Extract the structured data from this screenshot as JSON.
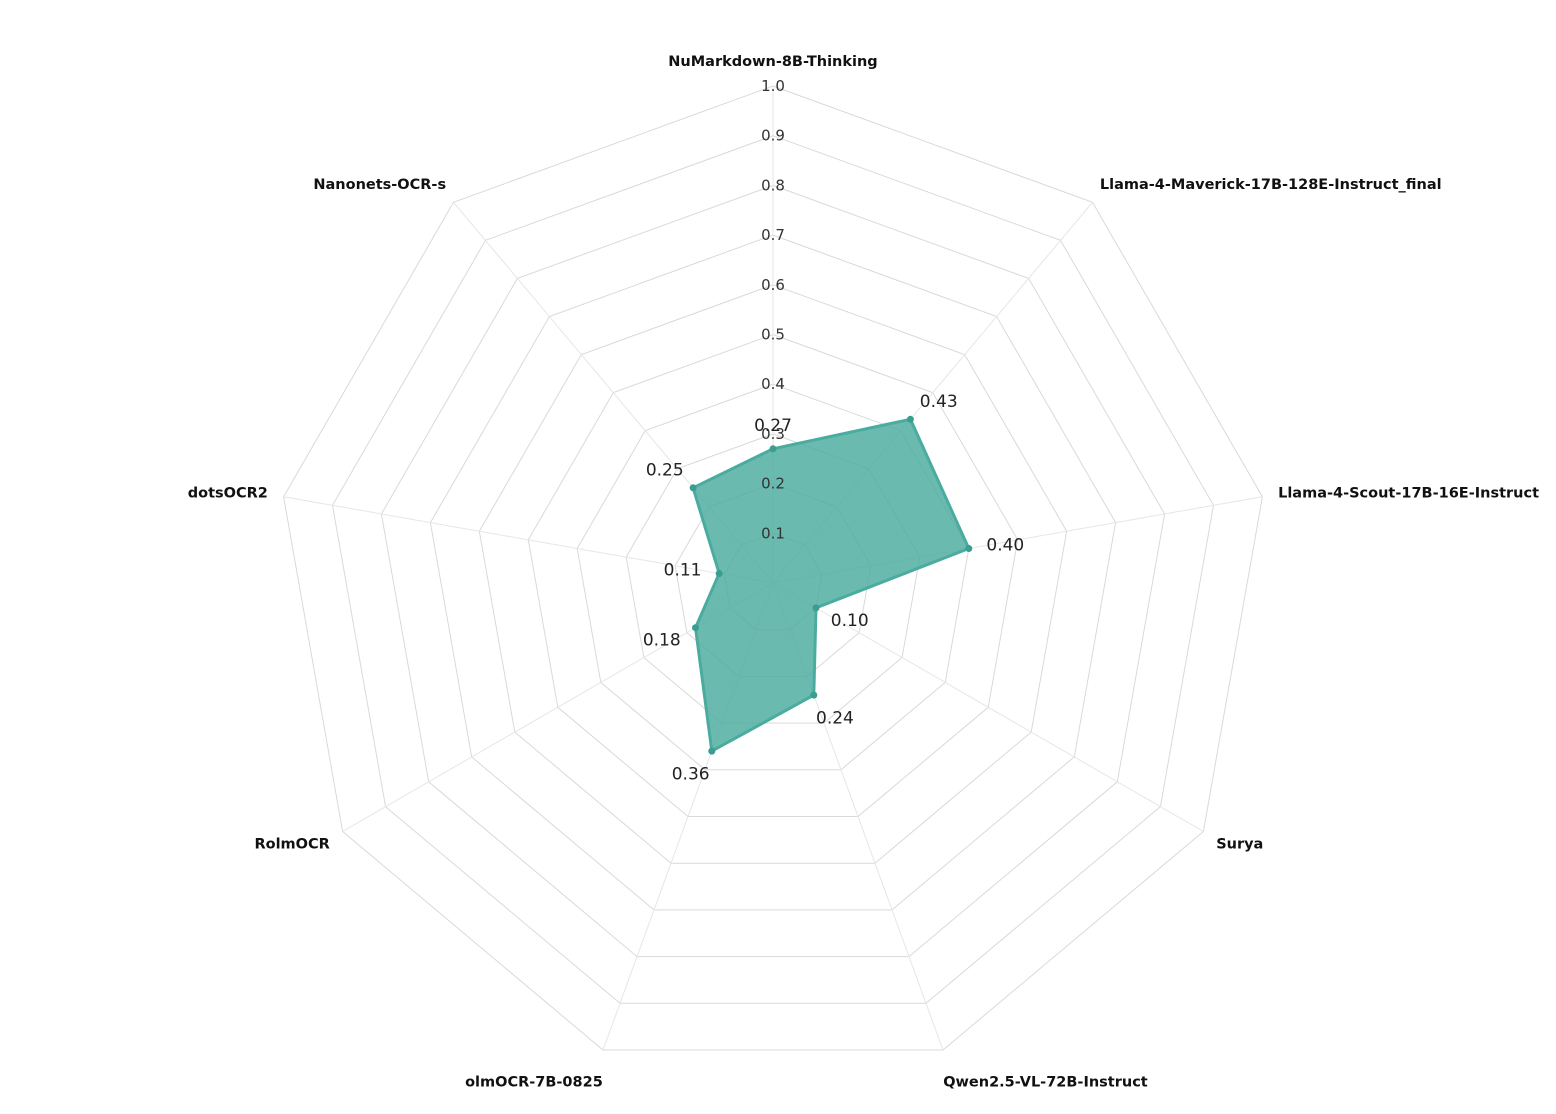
{
  "chart_data": {
    "type": "radar",
    "title": "",
    "axes": [
      "NuMarkdown-8B-Thinking",
      "Llama-4-Maverick-17B-128E-Instruct_final",
      "Llama-4-Scout-17B-16E-Instruct",
      "Surya",
      "Qwen2.5-VL-72B-Instruct",
      "olmOCR-7B-0825",
      "RolmOCR",
      "dotsOCR2",
      "Nanonets-OCR-s"
    ],
    "series": [
      {
        "values": [
          0.27,
          0.43,
          0.4,
          0.1,
          0.24,
          0.36,
          0.18,
          0.11,
          0.25
        ],
        "value_labels": [
          "0.27",
          "0.43",
          "0.40",
          "0.10",
          "0.24",
          "0.36",
          "0.18",
          "0.11",
          "0.25"
        ],
        "color": "#4aab9f"
      }
    ],
    "radial_range": [
      0,
      1.0
    ],
    "radial_ticks": [
      0.1,
      0.2,
      0.3,
      0.4,
      0.5,
      0.6,
      0.7,
      0.8,
      0.9,
      1.0
    ],
    "radial_tick_labels": [
      "0.1",
      "0.2",
      "0.3",
      "0.4",
      "0.5",
      "0.6",
      "0.7",
      "0.8",
      "0.9",
      "1.0"
    ],
    "grid": true,
    "legend": "none"
  }
}
